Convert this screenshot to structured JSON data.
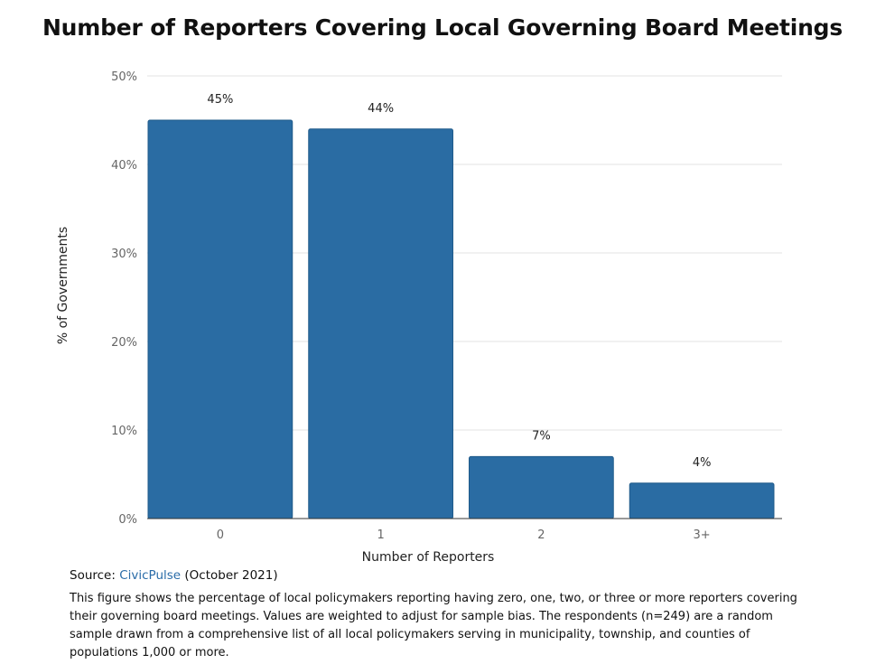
{
  "chart_data": {
    "type": "bar",
    "title": "Number of Reporters Covering Local Governing Board Meetings",
    "xlabel": "Number of Reporters",
    "ylabel": "% of Governments",
    "categories": [
      "0",
      "1",
      "2",
      "3+"
    ],
    "values": [
      45,
      44,
      7,
      4
    ],
    "data_labels": [
      "45%",
      "44%",
      "7%",
      "4%"
    ],
    "ylim": [
      0,
      50
    ],
    "yticks": [
      0,
      10,
      20,
      30,
      40,
      50
    ],
    "ytick_labels": [
      "0%",
      "10%",
      "20%",
      "30%",
      "40%",
      "50%"
    ],
    "grid": true,
    "legend": "none",
    "bar_color": "#2a6ca3"
  },
  "footer": {
    "source_prefix": "Source:",
    "source_link": "CivicPulse",
    "source_suffix": "(October 2021)",
    "note": "This figure shows the percentage of local policymakers reporting having zero, one, two, or three or more reporters covering their governing board meetings. Values are weighted to adjust for sample bias. The respondents (n=249) are a random sample drawn from a comprehensive list of all local policymakers serving in municipality, township, and counties of populations 1,000 or more."
  }
}
